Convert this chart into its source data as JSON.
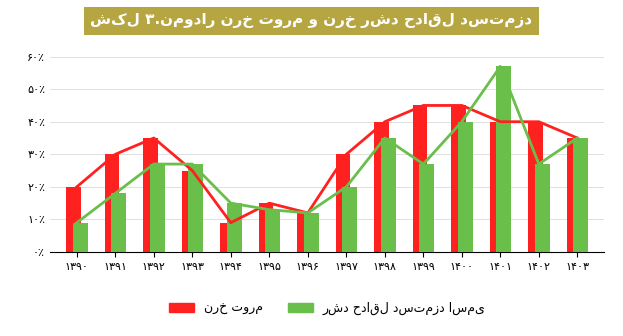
{
  "title": "شکل ۳.نمودار نرخ تورم و نرخ رشد حداقل دستمزد",
  "title_bg": "#b5a642",
  "title_color": "#ffffff",
  "background_color": "#ffffff",
  "years": [
    "۱۳۹۰",
    "۱۳۹۱",
    "۱۳۹۲",
    "۱۳۹۳",
    "۱۳۹۴",
    "۱۳۹۵",
    "۱۳۹۶",
    "۱۳۹۷",
    "۱۳۹۸",
    "۱۳۹۹",
    "۱۴۰۰",
    "۱۴۰۱",
    "۱۴۰۲",
    "۱۴۰۳"
  ],
  "inflation": [
    20,
    30,
    35,
    25,
    9,
    15,
    12,
    30,
    40,
    45,
    45,
    40,
    40,
    35
  ],
  "wage_growth": [
    9,
    18,
    27,
    27,
    15,
    13,
    12,
    20,
    35,
    27,
    40,
    57,
    27,
    35
  ],
  "inflation_color": "#ff2020",
  "wage_color": "#6abf4b",
  "bar_width": 0.35,
  "ylim": [
    0,
    65
  ],
  "yticks": [
    0,
    10,
    20,
    30,
    40,
    50,
    60
  ],
  "ytick_labels": [
    "۰٪",
    "۱۰٪",
    "۲۰٪",
    "۳۰٪",
    "۴۰٪",
    "۵۰٪",
    "۶۰٪"
  ],
  "legend_inflation": "نرخ تورم",
  "legend_wage": "رشد حداقل دستمزد اسمی"
}
